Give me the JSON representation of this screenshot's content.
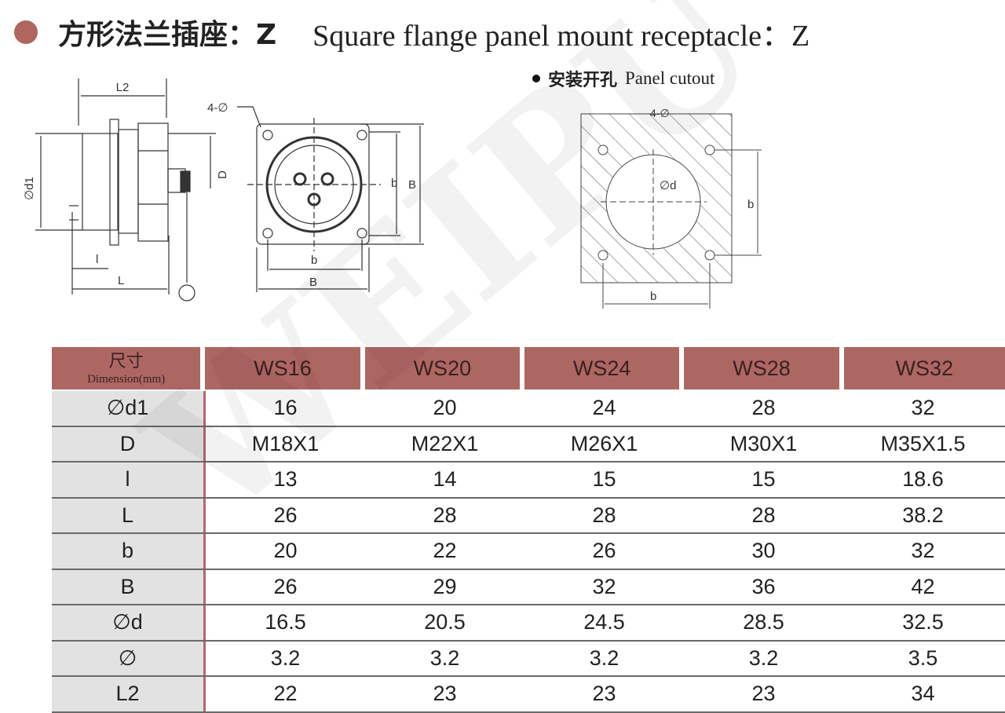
{
  "title": {
    "cn": "方形法兰插座：Z",
    "en": "Square flange panel mount receptacle：Z",
    "bullet_color": "#b0665f"
  },
  "cutout": {
    "cn": "安装开孔",
    "en": "Panel cutout"
  },
  "drawing_labels": {
    "L2": "L2",
    "d1": "∅d1",
    "D": "D",
    "l": "l",
    "L": "L",
    "holes": "4-∅",
    "b": "b",
    "B": "B",
    "d": "∅d"
  },
  "watermark": "WEIPU",
  "table": {
    "header_cn": "尺寸",
    "header_en": "Dimension(mm)",
    "header_color": "#ad6763",
    "columns": [
      "WS16",
      "WS20",
      "WS24",
      "WS28",
      "WS32"
    ],
    "rows": [
      {
        "label": "∅d1",
        "values": [
          "16",
          "20",
          "24",
          "28",
          "32"
        ]
      },
      {
        "label": "D",
        "values": [
          "M18X1",
          "M22X1",
          "M26X1",
          "M30X1",
          "M35X1.5"
        ]
      },
      {
        "label": "l",
        "values": [
          "13",
          "14",
          "15",
          "15",
          "18.6"
        ]
      },
      {
        "label": "L",
        "values": [
          "26",
          "28",
          "28",
          "28",
          "38.2"
        ]
      },
      {
        "label": "b",
        "values": [
          "20",
          "22",
          "26",
          "30",
          "32"
        ]
      },
      {
        "label": "B",
        "values": [
          "26",
          "29",
          "32",
          "36",
          "42"
        ]
      },
      {
        "label": "∅d",
        "values": [
          "16.5",
          "20.5",
          "24.5",
          "28.5",
          "32.5"
        ]
      },
      {
        "label": "∅",
        "values": [
          "3.2",
          "3.2",
          "3.2",
          "3.2",
          "3.5"
        ]
      },
      {
        "label": "L2",
        "values": [
          "22",
          "23",
          "23",
          "23",
          "34"
        ]
      }
    ]
  }
}
